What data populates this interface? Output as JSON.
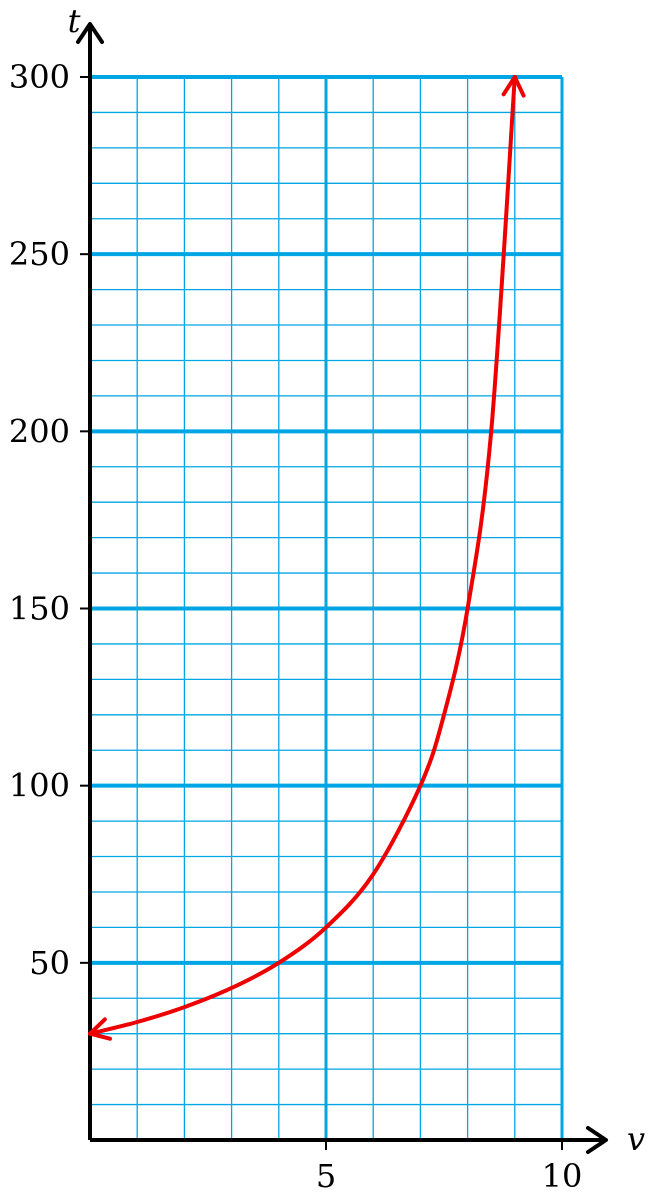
{
  "chart_data": {
    "type": "line",
    "xlabel": "v",
    "ylabel": "t",
    "xlim": [
      0,
      10
    ],
    "ylim": [
      0,
      300
    ],
    "x_ticks": [
      5,
      10
    ],
    "x_tick_labels": [
      "5",
      "10"
    ],
    "y_ticks": [
      50,
      100,
      150,
      200,
      250,
      300
    ],
    "y_tick_labels": [
      "50",
      "100",
      "150",
      "200",
      "250",
      "300"
    ],
    "x_minor_step": 1,
    "y_minor_step": 10,
    "grid": true,
    "series": [
      {
        "x": [
          0,
          1,
          2,
          3,
          4,
          5,
          6,
          7,
          7.5,
          8,
          8.5,
          9
        ],
        "y": [
          30,
          33.3,
          37.5,
          42.9,
          50,
          60,
          75,
          100,
          120,
          150,
          200,
          300
        ],
        "arrows": "both"
      }
    ]
  },
  "colors": {
    "grid": "#00a6e3",
    "curve": "#ee0000",
    "axis": "#000000"
  }
}
